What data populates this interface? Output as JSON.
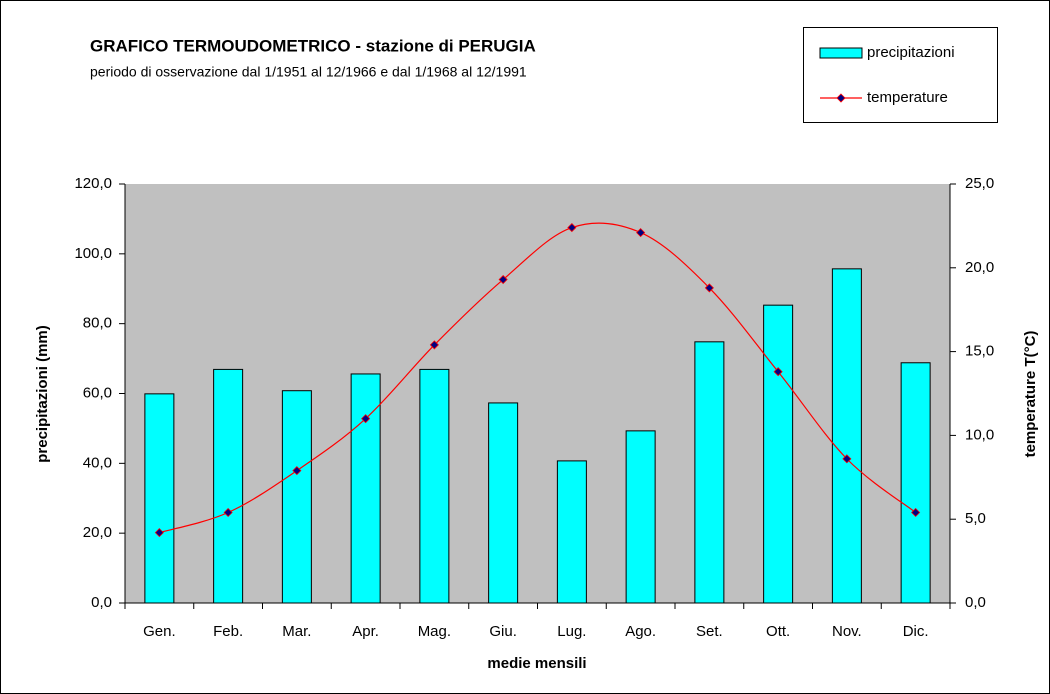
{
  "chart_data": {
    "type": "bar",
    "title": "GRAFICO TERMOUDOMETRICO - stazione di PERUGIA",
    "subtitle": "periodo di osservazione dal 1/1951 al 12/1966 e dal 1/1968 al 12/1991",
    "x_label": "medie mensili",
    "y_label": "precipitazioni (mm)",
    "y2_label": "temperature T(°C)",
    "categories": [
      "Gen.",
      "Feb.",
      "Mar.",
      "Apr.",
      "Mag.",
      "Giu.",
      "Lug.",
      "Ago.",
      "Set.",
      "Ott.",
      "Nov.",
      "Dic."
    ],
    "series": [
      {
        "name": "precipitazioni",
        "type": "bar",
        "color": "#00ffff",
        "values": [
          59.9,
          66.9,
          60.8,
          65.6,
          66.9,
          57.3,
          40.7,
          49.3,
          74.8,
          85.3,
          95.7,
          68.8
        ]
      },
      {
        "name": "temperature",
        "type": "line",
        "axis": "y2",
        "color": "#ff0000",
        "marker_color": "#000080",
        "values": [
          4.2,
          5.4,
          7.9,
          11.0,
          15.4,
          19.3,
          22.4,
          22.1,
          18.8,
          13.8,
          8.6,
          5.4
        ]
      }
    ],
    "ylim": [
      0,
      120
    ],
    "yticks": [
      {
        "value": 0,
        "label": "0,0"
      },
      {
        "value": 20,
        "label": "20,0"
      },
      {
        "value": 40,
        "label": "40,0"
      },
      {
        "value": 60,
        "label": "60,0"
      },
      {
        "value": 80,
        "label": "80,0"
      },
      {
        "value": 100,
        "label": "100,0"
      },
      {
        "value": 120,
        "label": "120,0"
      }
    ],
    "y2lim": [
      0,
      25
    ],
    "y2ticks": [
      {
        "value": 0,
        "label": "0,0"
      },
      {
        "value": 5,
        "label": "5,0"
      },
      {
        "value": 10,
        "label": "10,0"
      },
      {
        "value": 15,
        "label": "15,0"
      },
      {
        "value": 20,
        "label": "20,0"
      },
      {
        "value": 25,
        "label": "25,0"
      }
    ],
    "grid": false,
    "legend": "top-right",
    "plot_background": "#c0c0c0"
  }
}
